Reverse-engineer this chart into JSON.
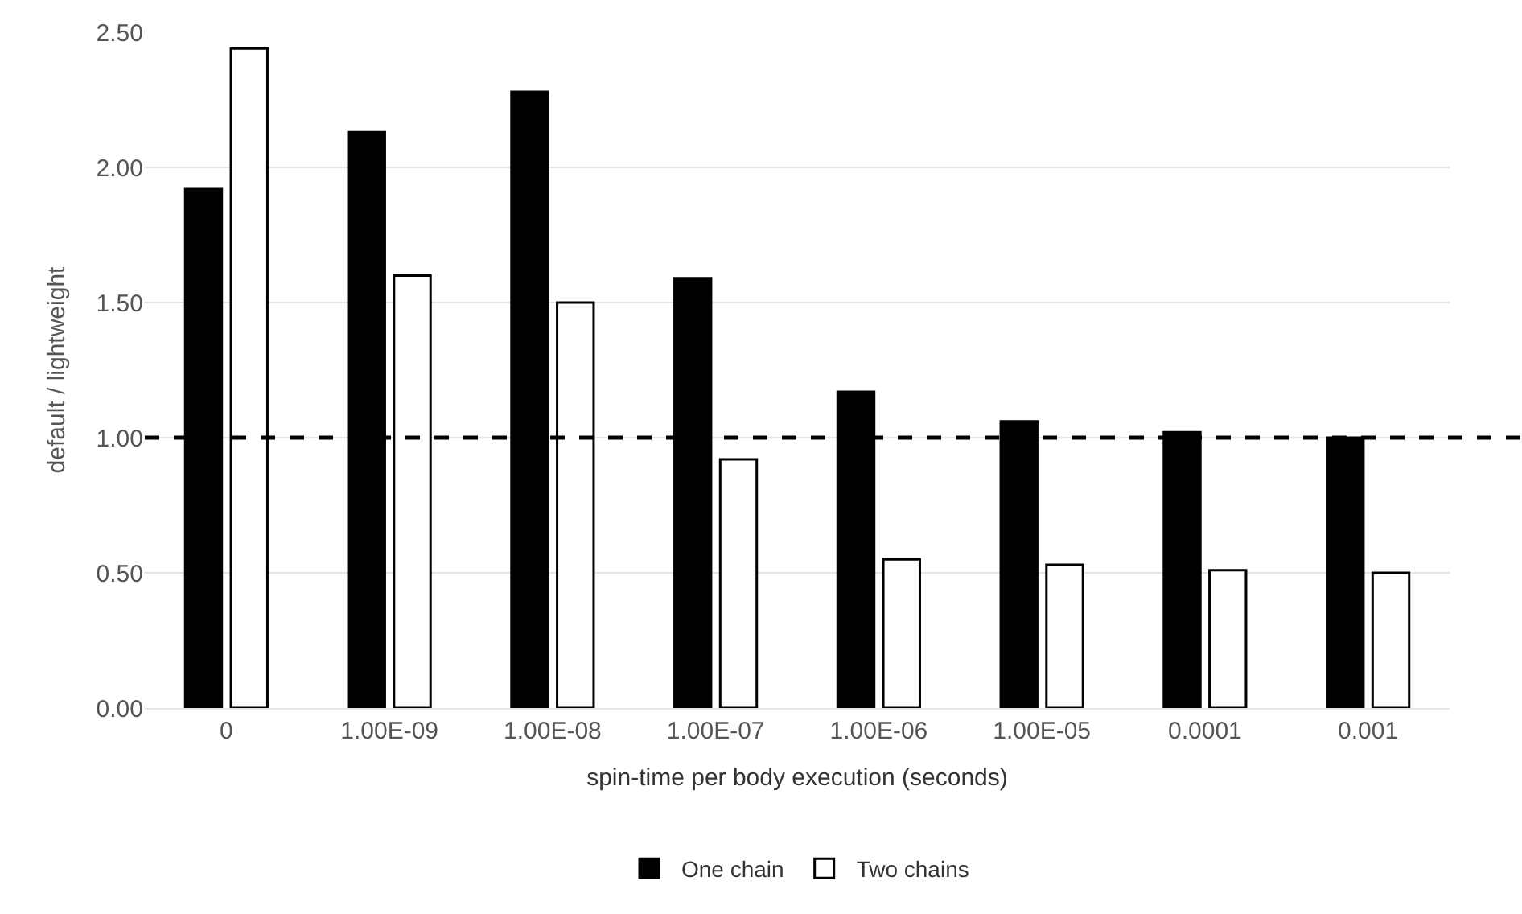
{
  "chart_data": {
    "type": "bar",
    "xlabel": "spin-time per body execution (seconds)",
    "ylabel": "default / lightweight",
    "categories": [
      "0",
      "1.00E-09",
      "1.00E-08",
      "1.00E-07",
      "1.00E-06",
      "1.00E-05",
      "0.0001",
      "0.001"
    ],
    "series": [
      {
        "name": "One chain",
        "color": "#000000",
        "values": [
          1.92,
          2.13,
          2.28,
          1.59,
          1.17,
          1.06,
          1.02,
          1.0
        ]
      },
      {
        "name": "Two chains",
        "color": "#ffffff",
        "values": [
          2.44,
          1.6,
          1.5,
          0.92,
          0.55,
          0.53,
          0.51,
          0.5
        ]
      }
    ],
    "ylim": [
      0,
      2.5
    ],
    "yticks": [
      {
        "value": 0,
        "label": "0.00"
      },
      {
        "value": 0.5,
        "label": "0.50"
      },
      {
        "value": 1,
        "label": "1.00"
      },
      {
        "value": 1.5,
        "label": "1.50"
      },
      {
        "value": 2,
        "label": "2.00"
      },
      {
        "value": 2.5,
        "label": "2.50"
      }
    ],
    "ref_lines": [
      {
        "axis": "y",
        "value": 1,
        "color": "#000000",
        "line_style": "dashed"
      }
    ],
    "grid": "y",
    "legend": "bottom"
  }
}
